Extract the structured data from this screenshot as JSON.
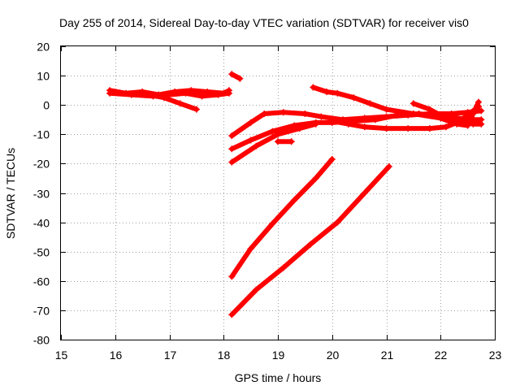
{
  "chart_data": {
    "type": "scatter",
    "title": "Day 255 of 2014, Sidereal Day-to-day VTEC variation (SDTVAR) for receiver vis0",
    "xlabel": "GPS time / hours",
    "ylabel": "SDTVAR / TECUs",
    "xlim": [
      15,
      23
    ],
    "ylim": [
      -80,
      20
    ],
    "xticks": [
      "15",
      "16",
      "17",
      "18",
      "19",
      "20",
      "21",
      "22",
      "23"
    ],
    "yticks": [
      "20",
      "10",
      "0",
      "-10",
      "-20",
      "-30",
      "-40",
      "-50",
      "-60",
      "-70",
      "-80"
    ],
    "grid": true,
    "marker": "plus",
    "color": "#ff0000",
    "series": [
      {
        "x": [
          15.9,
          16.2,
          16.5,
          16.8,
          17.1,
          17.4,
          17.7,
          18.0,
          18.1
        ],
        "y": [
          5,
          4,
          4.5,
          3.5,
          4.5,
          5,
          4.5,
          4,
          5
        ]
      },
      {
        "x": [
          15.9,
          16.3,
          16.7,
          17.0,
          17.3,
          17.6,
          17.9,
          18.1
        ],
        "y": [
          4,
          3.5,
          3,
          3.5,
          4,
          3,
          3.5,
          4
        ]
      },
      {
        "x": [
          16.6,
          16.9,
          17.2,
          17.5
        ],
        "y": [
          3.5,
          2.5,
          0.5,
          -1.5
        ]
      },
      {
        "x": [
          18.15,
          18.3
        ],
        "y": [
          10.5,
          9
        ]
      },
      {
        "x": [
          18.15,
          18.5,
          18.75,
          19.1,
          19.5,
          19.8,
          20.2,
          20.6,
          21.0,
          21.4,
          21.8,
          22.2,
          22.5,
          22.75
        ],
        "y": [
          -10.5,
          -6,
          -3,
          -2.5,
          -3,
          -4,
          -5,
          -4.5,
          -4,
          -3.5,
          -3,
          -3,
          -2.5,
          -2
        ]
      },
      {
        "x": [
          18.15,
          18.5,
          18.9,
          19.3,
          19.7,
          20.0,
          20.4,
          20.8,
          21.2,
          21.6,
          22.0,
          22.3,
          22.6,
          22.75
        ],
        "y": [
          -15,
          -12,
          -9,
          -7,
          -6,
          -6,
          -5.5,
          -5,
          -3.5,
          -3,
          -4,
          -4.5,
          -5,
          -5
        ]
      },
      {
        "x": [
          18.15,
          18.6,
          19.0,
          19.4,
          19.7
        ],
        "y": [
          -19.5,
          -14,
          -10,
          -8,
          -6.5
        ]
      },
      {
        "x": [
          19.0,
          19.25
        ],
        "y": [
          -12.5,
          -12.5
        ]
      },
      {
        "x": [
          19.65,
          19.9,
          20.1,
          20.4,
          20.7,
          21.0,
          21.5,
          22.0,
          22.3,
          22.5,
          22.6,
          22.7
        ],
        "y": [
          6,
          4.5,
          4,
          2.5,
          0.5,
          -1.5,
          -3,
          -4.5,
          -6.5,
          -7,
          -3,
          1
        ]
      },
      {
        "x": [
          20.0,
          20.3,
          20.6,
          21.0,
          21.4,
          21.8,
          22.1,
          22.3,
          22.5,
          22.7
        ],
        "y": [
          -5.5,
          -6.5,
          -7.5,
          -8,
          -8,
          -8,
          -7.5,
          -6,
          -3.5,
          -0.5
        ]
      },
      {
        "x": [
          21.5,
          21.8,
          22.1,
          22.4,
          22.6,
          22.75
        ],
        "y": [
          0.5,
          -1.5,
          -4.5,
          -6,
          -6.5,
          -6.5
        ]
      },
      {
        "x": [
          18.15,
          18.5,
          18.9,
          19.3,
          19.7,
          20.0
        ],
        "y": [
          -58.5,
          -49,
          -40.5,
          -32.5,
          -25,
          -18.5
        ]
      },
      {
        "x": [
          18.15,
          18.6,
          19.1,
          19.6,
          20.1,
          20.6,
          21.05
        ],
        "y": [
          -71.5,
          -63,
          -55.5,
          -47.5,
          -40,
          -30,
          -21
        ]
      }
    ]
  }
}
